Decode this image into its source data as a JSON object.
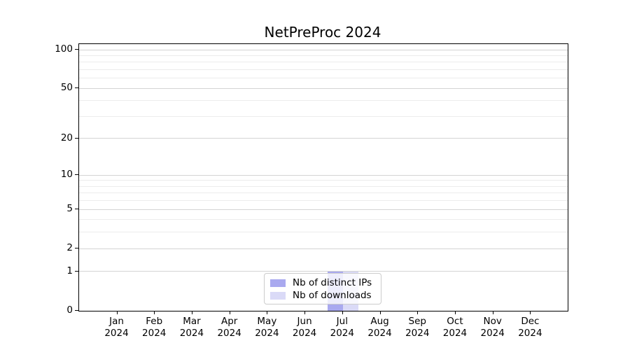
{
  "title": "NetPreProc 2024",
  "chart_data": {
    "type": "bar",
    "title": "NetPreProc 2024",
    "categories": [
      "Jan",
      "Feb",
      "Mar",
      "Apr",
      "May",
      "Jun",
      "Jul",
      "Aug",
      "Sep",
      "Oct",
      "Nov",
      "Dec"
    ],
    "category_year": "2024",
    "series": [
      {
        "name": "Nb of distinct IPs",
        "color": "#a9a9ef",
        "values": [
          0,
          0,
          0,
          0,
          0,
          0,
          1,
          0,
          0,
          0,
          0,
          0
        ]
      },
      {
        "name": "Nb of downloads",
        "color": "#dadaf7",
        "values": [
          0,
          0,
          0,
          0,
          0,
          0,
          1,
          0,
          0,
          0,
          0,
          0
        ]
      }
    ],
    "y_scale": "log1p",
    "y_max": 100,
    "y_major_ticks": [
      0,
      1,
      2,
      5,
      10,
      20,
      50,
      100
    ],
    "y_minor_gridlines": [
      3,
      4,
      6,
      7,
      8,
      9,
      30,
      40,
      60,
      70,
      80,
      90
    ],
    "grid": "horizontal",
    "legend_position": "lower center",
    "xlabel": "",
    "ylabel": ""
  },
  "colors": {
    "major_grid": "#d4d4d4",
    "minor_grid": "#ececec",
    "spine": "#000000",
    "legend_border": "#cccccc"
  }
}
